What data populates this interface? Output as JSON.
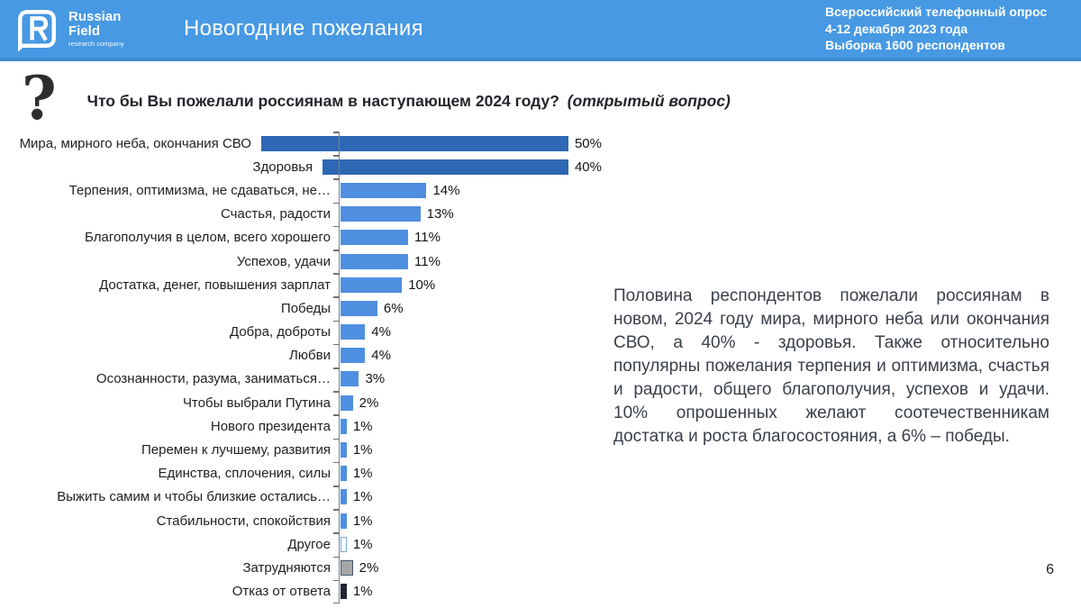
{
  "header": {
    "logo": {
      "brand_line1": "Russian",
      "brand_line2": "Field",
      "tagline": "research company"
    },
    "title": "Новогодние пожелания",
    "meta_lines": [
      "Всероссийский телефонный опрос",
      "4-12 декабря 2023 года",
      "Выборка 1600 респондентов"
    ],
    "bg_color": "#4799E3"
  },
  "question": {
    "mark": "?",
    "text": "Что бы Вы пожелали россиянам в наступающем 2024 году?",
    "note": "(открытый вопрос)"
  },
  "chart_data": {
    "type": "bar",
    "orientation": "horizontal",
    "title": "Что бы Вы пожелали россиянам в наступающем 2024 году?",
    "categories": [
      "Мира, мирного неба, окончания СВО",
      "Здоровья",
      "Терпения, оптимизма, не сдаваться, не…",
      "Счастья, радости",
      "Благополучия в целом, всего хорошего",
      "Успехов, удачи",
      "Достатка, денег, повышения зарплат",
      "Победы",
      "Добра, доброты",
      "Любви",
      "Осознанности, разума, заниматься…",
      "Чтобы выбрали Путина",
      "Нового президента",
      "Перемен к лучшему, развития",
      "Единства, сплочения, силы",
      "Выжить самим и чтобы близкие остались…",
      "Стабильности, спокойствия",
      "Другое",
      "Затрудняются",
      "Отказ от ответа"
    ],
    "values": [
      50,
      40,
      14,
      13,
      11,
      11,
      10,
      6,
      4,
      4,
      3,
      2,
      1,
      1,
      1,
      1,
      1,
      1,
      2,
      1
    ],
    "value_labels": [
      "50%",
      "40%",
      "14%",
      "13%",
      "11%",
      "11%",
      "10%",
      "6%",
      "4%",
      "4%",
      "3%",
      "2%",
      "1%",
      "1%",
      "1%",
      "1%",
      "1%",
      "1%",
      "2%",
      "1%"
    ],
    "bar_styles": [
      "dark",
      "dark",
      "light",
      "light",
      "light",
      "light",
      "light",
      "light",
      "light",
      "light",
      "light",
      "light",
      "light",
      "light",
      "light",
      "light",
      "light",
      "outline",
      "gray",
      "navy"
    ],
    "colors": {
      "dark": "#2E68B4",
      "light": "#4F8FE0",
      "outline_bg": "#FDFDFD",
      "outline_border": "#7DA7DC",
      "gray": "#A6A6A6",
      "gray_border": "#44546A",
      "navy": "#1F2537",
      "axis": "#7f7f7f"
    },
    "xlim": [
      0,
      55
    ],
    "grid": false,
    "legend": false,
    "data_labels": true
  },
  "commentary": {
    "text": "Половина респондентов пожелали россиянам в новом, 2024 году мира, мирного неба или окончания СВО, а 40% - здоровья. Также относительно популярны пожелания терпения и оптимизма, счастья и радости, общего благополучия, успехов и удачи. 10% опрошенных желают соотечественникам достатка и роста благосостояния, а 6% – победы."
  },
  "page_number": "6"
}
